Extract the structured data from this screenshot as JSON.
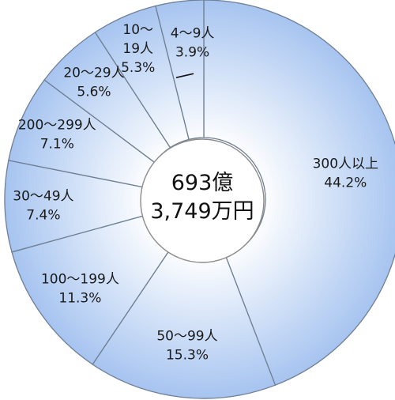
{
  "chart_data": {
    "type": "pie",
    "variant": "donut",
    "start_angle_deg": 0,
    "direction": "clockwise",
    "center_text": [
      "693億",
      "3,749万円"
    ],
    "slices": [
      {
        "category_lines": [
          "300人以上"
        ],
        "value": 44.2,
        "label": "44.2%"
      },
      {
        "category_lines": [
          "50～99人"
        ],
        "value": 15.3,
        "label": "15.3%"
      },
      {
        "category_lines": [
          "100～199人"
        ],
        "value": 11.3,
        "label": "11.3%"
      },
      {
        "category_lines": [
          "30～49人"
        ],
        "value": 7.4,
        "label": "7.4%"
      },
      {
        "category_lines": [
          "200～299人"
        ],
        "value": 7.1,
        "label": "7.1%"
      },
      {
        "category_lines": [
          "20～29人"
        ],
        "value": 5.6,
        "label": "5.6%"
      },
      {
        "category_lines": [
          "10～",
          "19人"
        ],
        "value": 5.3,
        "label": "5.3%"
      },
      {
        "category_lines": [
          "4～9人"
        ],
        "value": 3.9,
        "label": "3.9%"
      }
    ],
    "colors": {
      "slice_outer": "#a6c4f0",
      "slice_inner": "#ffffff",
      "slice_border": "#6f7f94",
      "center_fill": "#ffffff",
      "center_border": "#8b8b8b"
    }
  }
}
